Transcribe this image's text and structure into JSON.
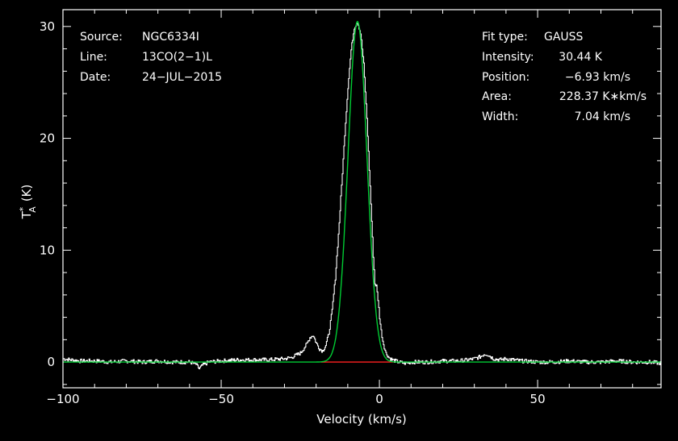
{
  "chart_data": {
    "type": "line",
    "xlabel": "Velocity (km/s)",
    "ylabel": "T",
    "ylabel_sub": "A",
    "ylabel_sup": "*",
    "ylabel_unit": "(K)",
    "xlim": [
      -100,
      89
    ],
    "ylim": [
      -2.3,
      31.5
    ],
    "xticks": [
      -100,
      -50,
      0,
      50
    ],
    "xtick_labels": [
      "−100",
      "−50",
      "0",
      "50"
    ],
    "yticks": [
      0,
      10,
      20,
      30
    ],
    "ytick_labels": [
      "0",
      "10",
      "20",
      "30"
    ],
    "header_left": [
      {
        "key": "Source:",
        "value": "NGC6334I"
      },
      {
        "key": "Line:",
        "value": "13CO(2−1)L"
      },
      {
        "key": "Date:",
        "value": "24−JUL−2015"
      }
    ],
    "header_right": [
      {
        "key": "Fit type:",
        "value": "GAUSS"
      },
      {
        "key": "Intensity:",
        "value": "30.44 K"
      },
      {
        "key": "Position:",
        "value": "−6.93 km/s"
      },
      {
        "key": "Area:",
        "value": "228.37 K∗km/s"
      },
      {
        "key": "Width:",
        "value": "7.04 km/s"
      }
    ],
    "fit": {
      "amplitude": 30.44,
      "center": -6.93,
      "fwhm": 7.04
    },
    "series": [
      {
        "color": "#ffffff",
        "x": [
          -100,
          -95,
          -90,
          -85,
          -80,
          -75,
          -70,
          -65,
          -60,
          -58,
          -57,
          -56,
          -54,
          -50,
          -45,
          -40,
          -35,
          -30,
          -28,
          -25,
          -23,
          -22,
          -21,
          -20,
          -19,
          -18,
          -17,
          -16,
          -15,
          -14,
          -13,
          -12,
          -11,
          -10,
          -9,
          -8,
          -7,
          -6,
          -5,
          -4,
          -3,
          -2,
          -1.5,
          -1,
          -0.5,
          0,
          0.5,
          1,
          2,
          3,
          4,
          5,
          6,
          8,
          10,
          15,
          20,
          25,
          28,
          30,
          32,
          33,
          34,
          35,
          36,
          38,
          40,
          42,
          45,
          50,
          55,
          60,
          65,
          70,
          75,
          80,
          85,
          89
        ],
        "y": [
          0.3,
          0.1,
          0.1,
          0.0,
          0.1,
          0.0,
          0.1,
          0.0,
          0.0,
          -0.2,
          -0.6,
          -0.3,
          0.0,
          0.1,
          0.2,
          0.2,
          0.2,
          0.3,
          0.4,
          0.8,
          1.6,
          2.2,
          2.4,
          1.7,
          1.2,
          1.0,
          1.5,
          2.6,
          4.6,
          7.5,
          11.4,
          15.8,
          20.4,
          24.6,
          27.9,
          29.9,
          30.4,
          29.4,
          26.6,
          21.8,
          15.7,
          9.5,
          7.0,
          6.8,
          5.6,
          4.0,
          2.8,
          1.9,
          0.8,
          0.4,
          0.2,
          0.1,
          0.0,
          -0.1,
          0.0,
          0.0,
          0.1,
          0.1,
          0.2,
          0.3,
          0.5,
          0.7,
          0.7,
          0.5,
          0.3,
          0.2,
          0.3,
          0.2,
          0.1,
          0.0,
          0.0,
          0.1,
          0.0,
          0.0,
          0.1,
          0.0,
          0.0,
          -0.1
        ]
      }
    ],
    "colors": {
      "background": "#000000",
      "data": "#ffffff",
      "fit": "#00cc33",
      "baseline": "#ff2020",
      "frame": "#ffffff"
    },
    "grid": false
  }
}
